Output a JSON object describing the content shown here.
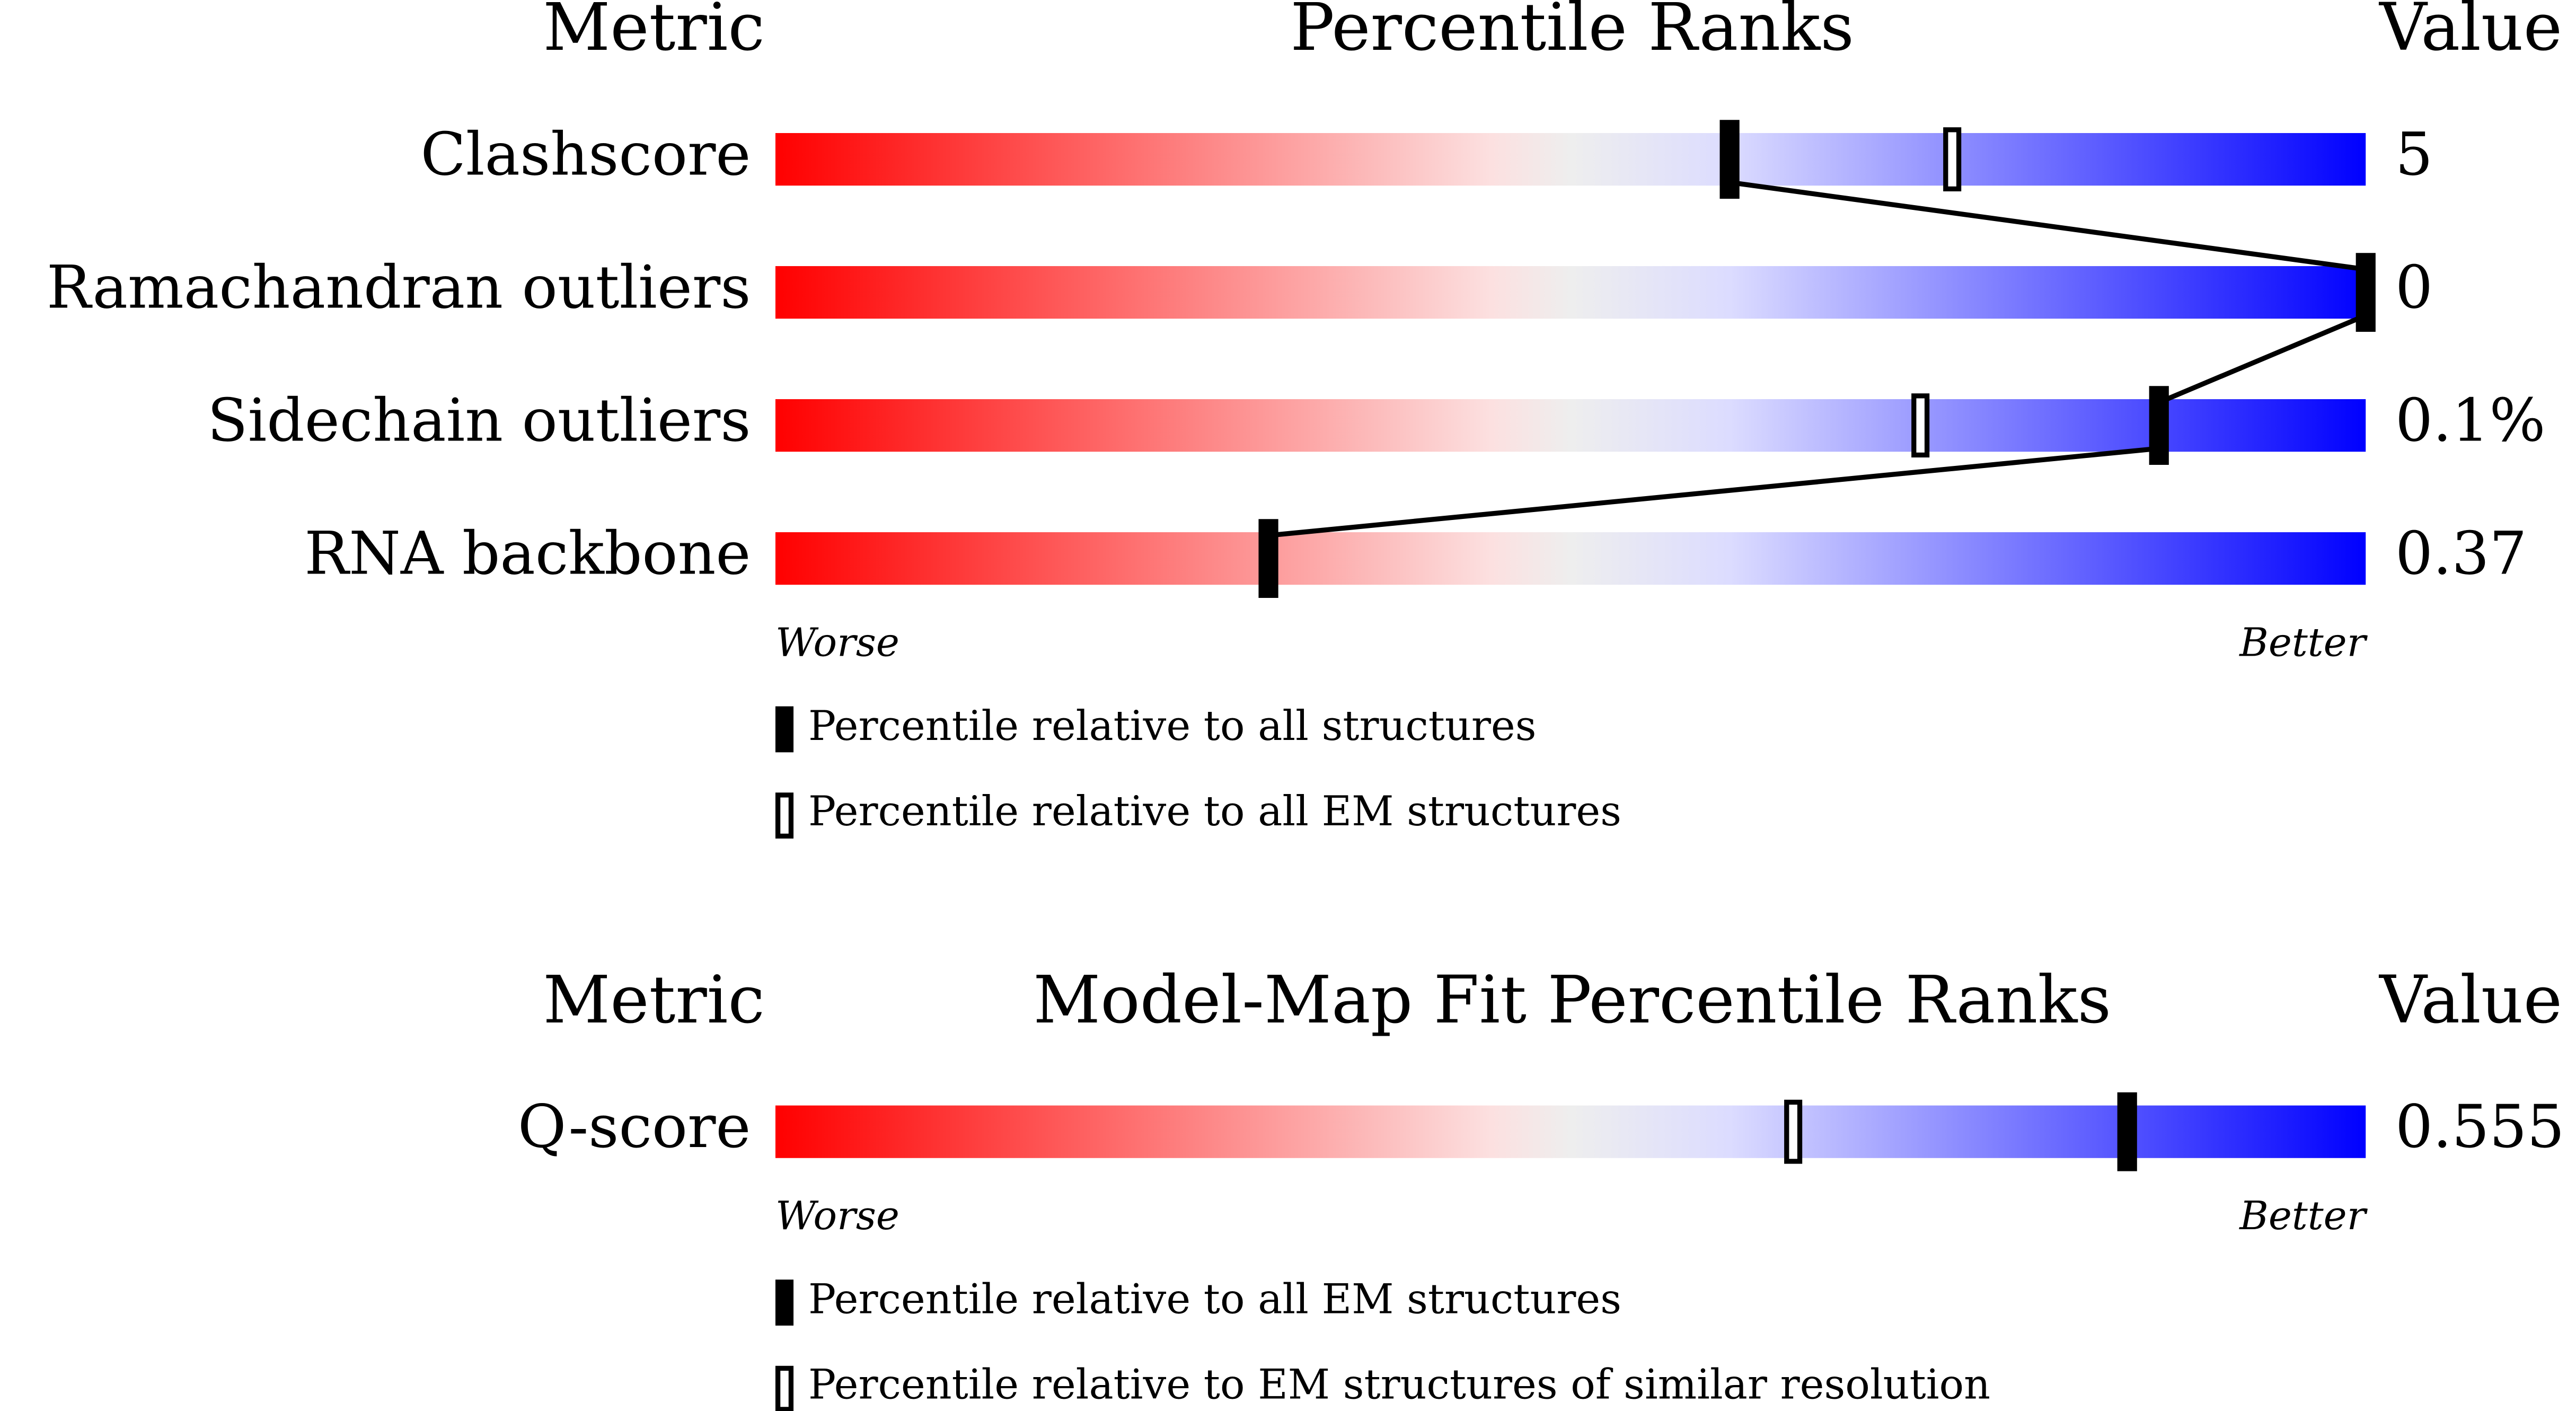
{
  "chart_data": [
    {
      "type": "percentile",
      "headers": {
        "metric": "Metric",
        "ranks": "Percentile Ranks",
        "value": "Value"
      },
      "categories": [
        "Clashscore",
        "Ramachandran outliers",
        "Sidechain outliers",
        "RNA backbone"
      ],
      "value_texts": [
        "5",
        "0",
        "0.1%",
        "0.37"
      ],
      "xlim": [
        0,
        100
      ],
      "axis_labels": {
        "low": "Worse",
        "high": "Better"
      },
      "gradient": [
        "#ff0000",
        "#fce0e0",
        "#eeeeee",
        "#dcdcff",
        "#0000ff"
      ],
      "connect_series": 0,
      "series": [
        {
          "name": "Percentile relative to all structures",
          "style": "filled",
          "color": "#000000",
          "values": [
            60,
            100,
            87,
            31
          ]
        },
        {
          "name": "Percentile relative to all EM structures",
          "style": "open",
          "color": "#000000",
          "values": [
            74,
            null,
            72,
            31
          ]
        }
      ]
    },
    {
      "type": "percentile",
      "headers": {
        "metric": "Metric",
        "ranks": "Model-Map Fit Percentile Ranks",
        "value": "Value"
      },
      "categories": [
        "Q-score"
      ],
      "value_texts": [
        "0.555"
      ],
      "xlim": [
        0,
        100
      ],
      "axis_labels": {
        "low": "Worse",
        "high": "Better"
      },
      "gradient": [
        "#ff0000",
        "#fce0e0",
        "#eeeeee",
        "#dcdcff",
        "#0000ff"
      ],
      "series": [
        {
          "name": "Percentile relative to all EM structures",
          "style": "filled",
          "color": "#000000",
          "values": [
            85
          ]
        },
        {
          "name": "Percentile relative to EM structures of similar resolution",
          "style": "open",
          "color": "#000000",
          "values": [
            64
          ]
        }
      ]
    }
  ]
}
